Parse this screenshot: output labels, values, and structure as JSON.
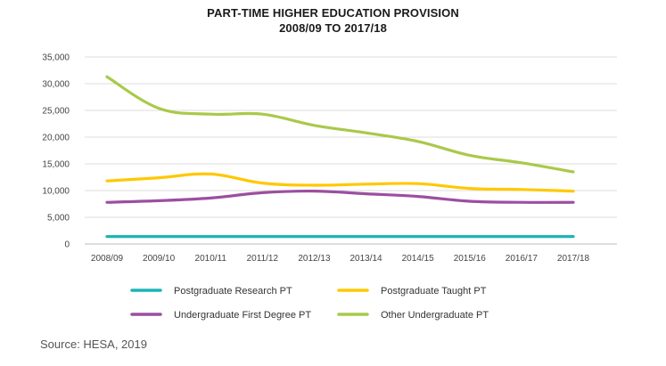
{
  "chart_data": {
    "type": "line",
    "title": "PART-TIME HIGHER EDUCATION PROVISION",
    "subtitle": "2008/09 TO 2017/18",
    "xlabel": "",
    "ylabel": "",
    "ylim": [
      0,
      35000
    ],
    "yticks": [
      0,
      5000,
      10000,
      15000,
      20000,
      25000,
      30000,
      35000
    ],
    "ytick_labels": [
      "0",
      "5,000",
      "10,000",
      "15,000",
      "20,000",
      "25,000",
      "30,000",
      "35,000"
    ],
    "categories": [
      "2008/09",
      "2009/10",
      "2010/11",
      "2011/12",
      "2012/13",
      "2013/14",
      "2014/15",
      "2015/16",
      "2016/17",
      "2017/18"
    ],
    "grid": true,
    "legend_position": "bottom",
    "series": [
      {
        "name": "Postgraduate Research PT",
        "color": "#1bb5b5",
        "values": [
          1400,
          1400,
          1400,
          1400,
          1400,
          1400,
          1400,
          1400,
          1400,
          1400
        ]
      },
      {
        "name": "Postgraduate Taught PT",
        "color": "#ffc800",
        "values": [
          11800,
          12400,
          13100,
          11400,
          11000,
          11200,
          11300,
          10400,
          10200,
          9900
        ]
      },
      {
        "name": "Undergraduate First Degree PT",
        "color": "#9b4fa0",
        "values": [
          7800,
          8100,
          8600,
          9600,
          9900,
          9400,
          8900,
          8000,
          7800,
          7800
        ]
      },
      {
        "name": "Other Undergraduate PT",
        "color": "#a9c94a",
        "values": [
          31300,
          25400,
          24300,
          24300,
          22200,
          20800,
          19200,
          16600,
          15200,
          13500
        ]
      }
    ]
  },
  "source": "Source: HESA, 2019"
}
